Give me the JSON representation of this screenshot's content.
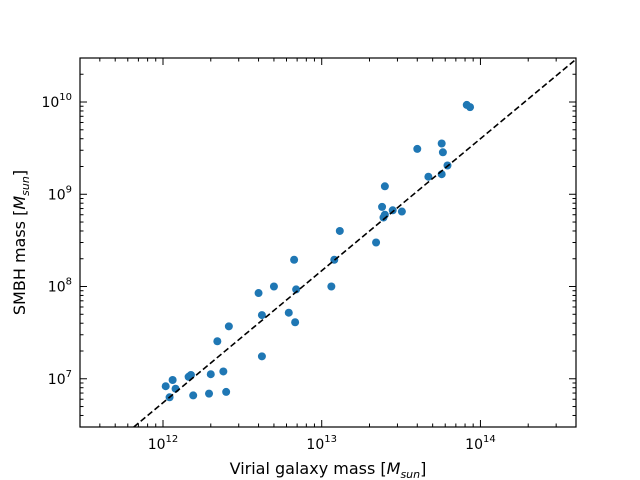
{
  "chart_data": {
    "type": "scatter",
    "title": "",
    "xlabel": "Virial galaxy mass [M_sun]",
    "ylabel": "SMBH mass [M_sun]",
    "xlabel_parts": {
      "text": "Virial galaxy mass [",
      "math": "M",
      "sub": "sun",
      "close": "]"
    },
    "ylabel_parts": {
      "text": "SMBH mass [",
      "math": "M",
      "sub": "sun",
      "close": "]"
    },
    "xscale": "log",
    "yscale": "log",
    "xlim": [
      300000000000.0,
      400000000000000.0
    ],
    "ylim": [
      3000000.0,
      30000000000.0
    ],
    "xticks": [
      {
        "value": 1000000000000.0,
        "base": "10",
        "exp": "12"
      },
      {
        "value": 10000000000000.0,
        "base": "10",
        "exp": "13"
      },
      {
        "value": 100000000000000.0,
        "base": "10",
        "exp": "14"
      }
    ],
    "yticks": [
      {
        "value": 10000000.0,
        "base": "10",
        "exp": "7"
      },
      {
        "value": 100000000.0,
        "base": "10",
        "exp": "8"
      },
      {
        "value": 1000000000.0,
        "base": "10",
        "exp": "9"
      },
      {
        "value": 10000000000.0,
        "base": "10",
        "exp": "10"
      }
    ],
    "grid": false,
    "legend": "none",
    "marker_color": "#1f77b4",
    "line_color": "#000000",
    "fit_line": {
      "style": "dashed",
      "points": [
        [
          1000000000000.0,
          5500000.0
        ],
        [
          100000000000000.0,
          4000000000.0
        ]
      ]
    },
    "series": [
      {
        "points": [
          [
            1040000000000.0,
            8300000.0
          ],
          [
            1100000000000.0,
            6300000.0
          ],
          [
            1150000000000.0,
            9700000.0
          ],
          [
            1200000000000.0,
            7800000.0
          ],
          [
            1450000000000.0,
            10500000.0
          ],
          [
            1500000000000.0,
            11000000.0
          ],
          [
            1550000000000.0,
            6600000.0
          ],
          [
            1950000000000.0,
            6900000.0
          ],
          [
            2000000000000.0,
            11200000.0
          ],
          [
            2200000000000.0,
            25500000.0
          ],
          [
            2400000000000.0,
            12000000.0
          ],
          [
            2500000000000.0,
            7200000.0
          ],
          [
            2600000000000.0,
            37000000.0
          ],
          [
            4000000000000.0,
            85000000.0
          ],
          [
            4200000000000.0,
            49000000.0
          ],
          [
            4200000000000.0,
            17500000.0
          ],
          [
            5000000000000.0,
            100000000.0
          ],
          [
            6200000000000.0,
            52000000.0
          ],
          [
            6700000000000.0,
            195000000.0
          ],
          [
            6800000000000.0,
            41000000.0
          ],
          [
            6900000000000.0,
            93000000.0
          ],
          [
            11500000000000.0,
            100000000.0
          ],
          [
            12000000000000.0,
            195000000.0
          ],
          [
            13000000000000.0,
            400000000.0
          ],
          [
            22000000000000.0,
            300000000.0
          ],
          [
            24000000000000.0,
            730000000.0
          ],
          [
            24500000000000.0,
            560000000.0
          ],
          [
            25000000000000.0,
            600000000.0
          ],
          [
            25000000000000.0,
            1220000000.0
          ],
          [
            28000000000000.0,
            670000000.0
          ],
          [
            32000000000000.0,
            650000000.0
          ],
          [
            40000000000000.0,
            3100000000.0
          ],
          [
            47000000000000.0,
            1550000000.0
          ],
          [
            57000000000000.0,
            3550000000.0
          ],
          [
            58000000000000.0,
            2850000000.0
          ],
          [
            57000000000000.0,
            1650000000.0
          ],
          [
            62000000000000.0,
            2050000000.0
          ],
          [
            82000000000000.0,
            9300000000.0
          ],
          [
            86000000000000.0,
            8800000000.0
          ]
        ]
      }
    ]
  }
}
